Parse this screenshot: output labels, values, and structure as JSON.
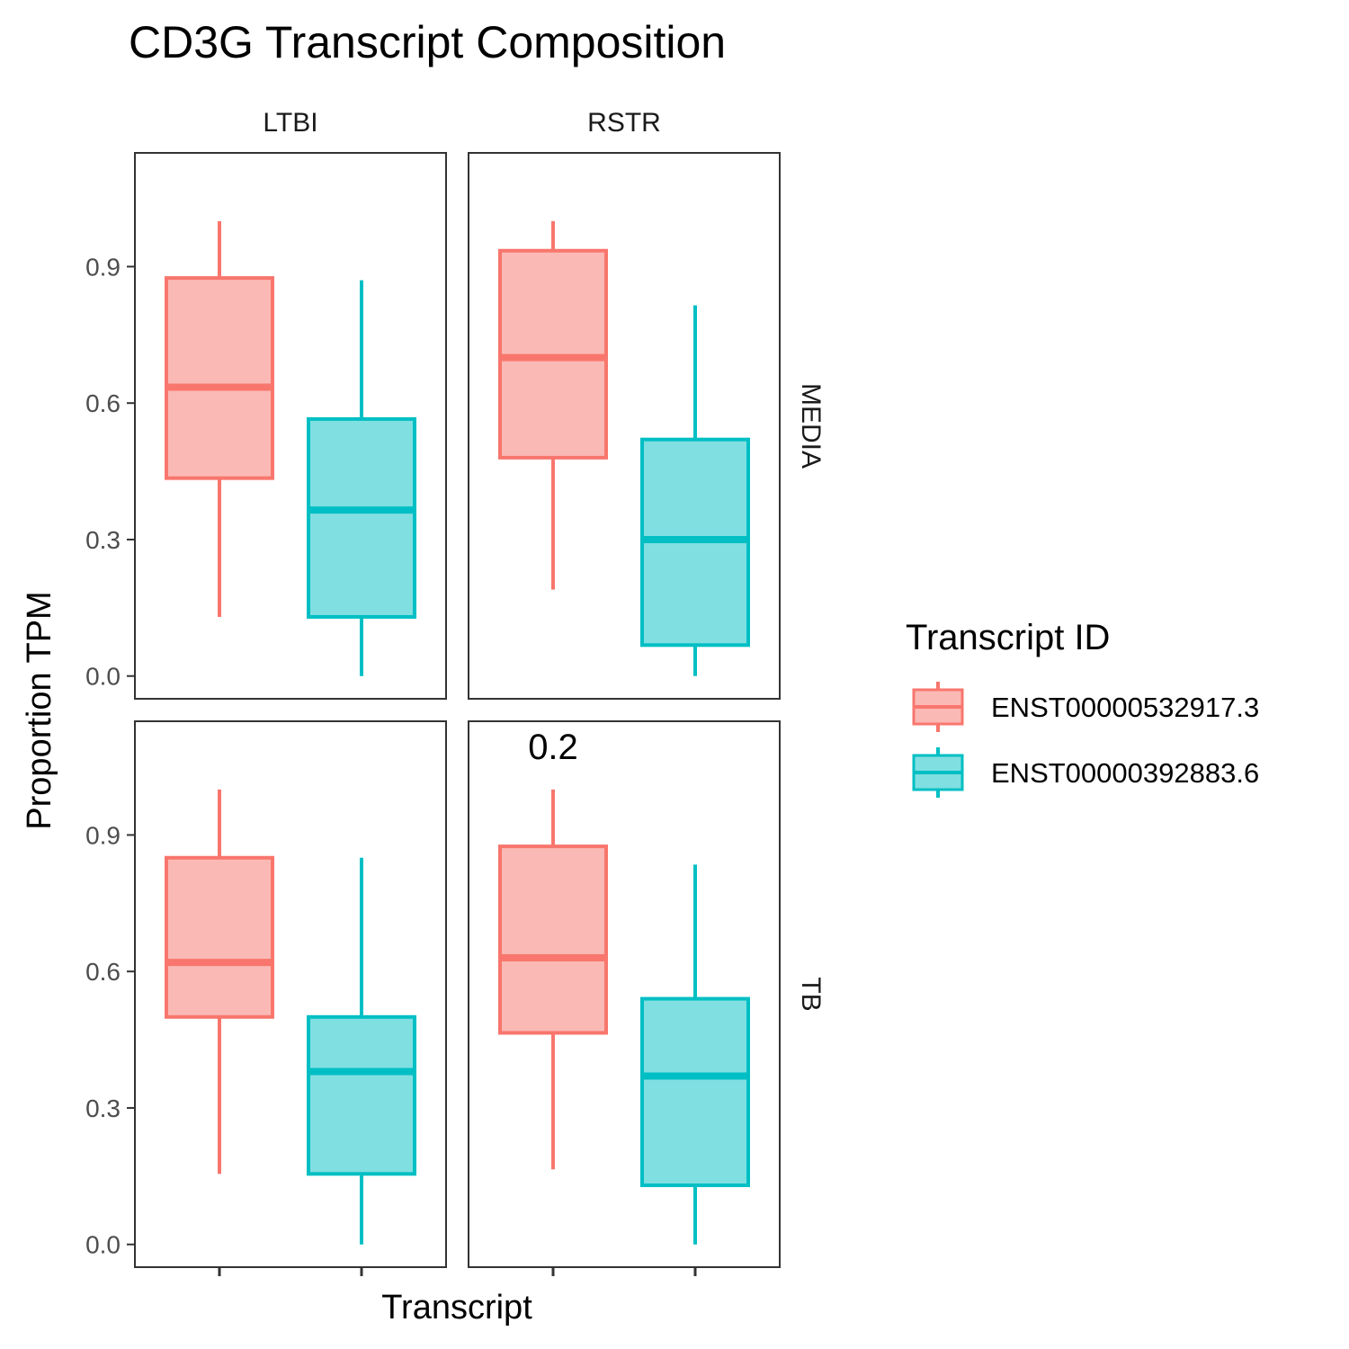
{
  "chart_data": {
    "type": "boxplot",
    "title": "CD3G Transcript Composition",
    "xlabel": "Transcript",
    "ylabel": "Proportion TPM",
    "ylim": [
      -0.05,
      1.15
    ],
    "yticks": [
      0.0,
      0.3,
      0.6,
      0.9
    ],
    "ytick_labels": [
      "0.0",
      "0.3",
      "0.6",
      "0.9"
    ],
    "grid": false,
    "legend": {
      "title": "Transcript ID",
      "position": "right",
      "entries": [
        {
          "label": "ENST00000532917.3",
          "stroke": "#F8766D",
          "fill": "#FBB9B5"
        },
        {
          "label": "ENST00000392883.6",
          "stroke": "#00BFC4",
          "fill": "#80DFE1"
        }
      ]
    },
    "columns": [
      "LTBI",
      "RSTR"
    ],
    "rows": [
      "MEDIA",
      "TB"
    ],
    "panels": [
      {
        "column": "LTBI",
        "row": "MEDIA",
        "annotation": "",
        "boxes": [
          {
            "series": "ENST00000532917.3",
            "min": 0.13,
            "q1": 0.435,
            "median": 0.635,
            "q3": 0.875,
            "max": 1.0
          },
          {
            "series": "ENST00000392883.6",
            "min": 0.0,
            "q1": 0.13,
            "median": 0.365,
            "q3": 0.565,
            "max": 0.87
          }
        ]
      },
      {
        "column": "RSTR",
        "row": "MEDIA",
        "annotation": "",
        "boxes": [
          {
            "series": "ENST00000532917.3",
            "min": 0.19,
            "q1": 0.48,
            "median": 0.7,
            "q3": 0.935,
            "max": 1.0
          },
          {
            "series": "ENST00000392883.6",
            "min": 0.0,
            "q1": 0.068,
            "median": 0.3,
            "q3": 0.52,
            "max": 0.815
          }
        ]
      },
      {
        "column": "LTBI",
        "row": "TB",
        "annotation": "",
        "boxes": [
          {
            "series": "ENST00000532917.3",
            "min": 0.155,
            "q1": 0.5,
            "median": 0.62,
            "q3": 0.85,
            "max": 1.0
          },
          {
            "series": "ENST00000392883.6",
            "min": 0.0,
            "q1": 0.155,
            "median": 0.38,
            "q3": 0.5,
            "max": 0.85
          }
        ]
      },
      {
        "column": "RSTR",
        "row": "TB",
        "annotation": "0.2",
        "boxes": [
          {
            "series": "ENST00000532917.3",
            "min": 0.165,
            "q1": 0.465,
            "median": 0.63,
            "q3": 0.875,
            "max": 1.0
          },
          {
            "series": "ENST00000392883.6",
            "min": 0.0,
            "q1": 0.13,
            "median": 0.37,
            "q3": 0.54,
            "max": 0.835
          }
        ]
      }
    ]
  }
}
